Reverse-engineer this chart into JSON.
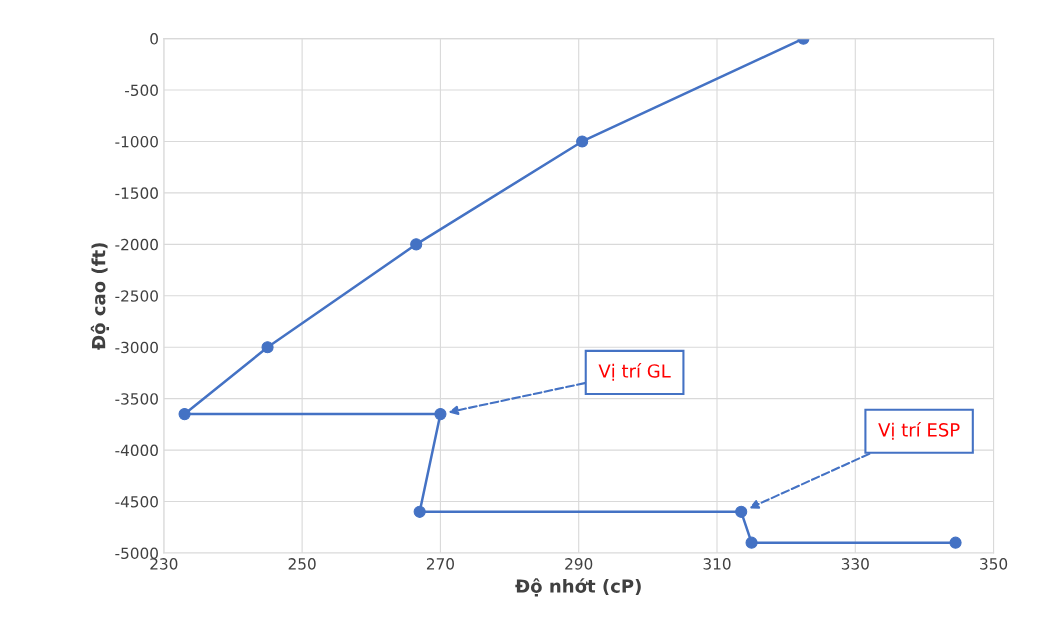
{
  "chart_data": {
    "type": "line",
    "xlabel": "Độ nhớt (cP)",
    "ylabel": "Độ cao (ft)",
    "series": [
      {
        "color": "#4472c4",
        "x": [
          322.5,
          290.5,
          266.5,
          245,
          233,
          270,
          267,
          313.5,
          315,
          344.5
        ],
        "values": [
          0,
          -1000,
          -2000,
          -3000,
          -3650,
          -3650,
          -4600,
          -4600,
          -4900,
          -4900
        ]
      }
    ],
    "xlim": [
      230,
      350
    ],
    "xticks": [
      230,
      250,
      270,
      290,
      310,
      330,
      350
    ],
    "ylim": [
      -5000,
      0
    ],
    "yticks": [
      -5000,
      -4500,
      -4000,
      -3500,
      -3000,
      -2500,
      -2000,
      -1500,
      -1000,
      -500,
      0
    ],
    "grid": true,
    "marker": "circle",
    "line_style": "solid",
    "annotations": [
      "Vị trí GL",
      "Vị trí ESP"
    ]
  }
}
